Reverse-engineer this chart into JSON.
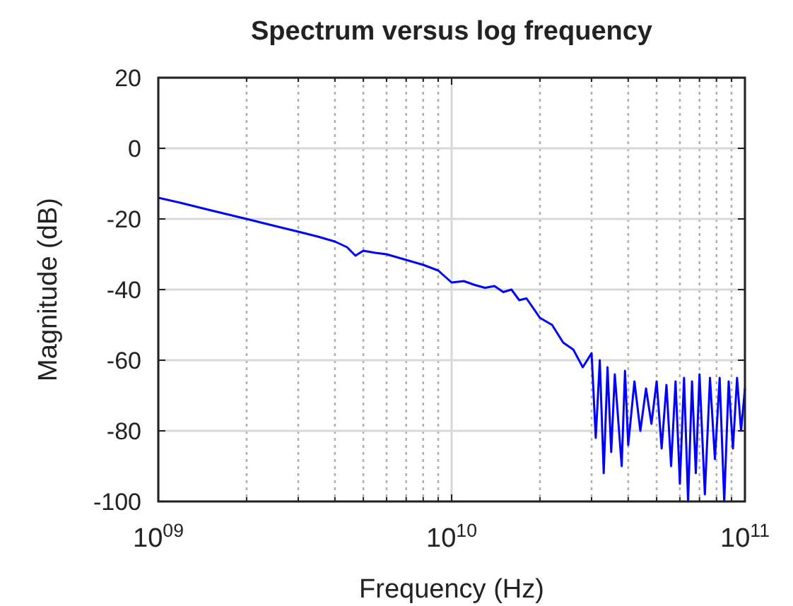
{
  "chart_data": {
    "type": "line",
    "title": "Spectrum versus log frequency",
    "xlabel": "Frequency (Hz)",
    "ylabel": "Magnitude (dB)",
    "log": "x",
    "grid": true,
    "marker": "none",
    "line_style": "solid",
    "xlim": [
      1000000000.0,
      100000000000.0
    ],
    "ylim": [
      -100,
      20
    ],
    "yticks": [
      -100,
      -80,
      -60,
      -40,
      -20,
      0,
      20
    ],
    "xticks": [
      {
        "value": 1000000000.0,
        "label": "10$^{09}$"
      },
      {
        "value": 2000000000.0,
        "label": null
      },
      {
        "value": 3000000000.0,
        "label": null
      },
      {
        "value": 4000000000.0,
        "label": null
      },
      {
        "value": 5000000000.0,
        "label": null
      },
      {
        "value": 6000000000.0,
        "label": null
      },
      {
        "value": 7000000000.0,
        "label": null
      },
      {
        "value": 8000000000.0,
        "label": null
      },
      {
        "value": 9000000000.0,
        "label": null
      },
      {
        "value": 10000000000.0,
        "label": "10$^{10}$"
      },
      {
        "value": 20000000000.0,
        "label": null
      },
      {
        "value": 30000000000.0,
        "label": null
      },
      {
        "value": 40000000000.0,
        "label": null
      },
      {
        "value": 50000000000.0,
        "label": null
      },
      {
        "value": 60000000000.0,
        "label": null
      },
      {
        "value": 70000000000.0,
        "label": null
      },
      {
        "value": 80000000000.0,
        "label": null
      },
      {
        "value": 90000000000.0,
        "label": null
      },
      {
        "value": 100000000000.0,
        "label": "10$^{11}$"
      }
    ],
    "series": [
      {
        "color": "#0000ff",
        "x": [
          1000000000.0,
          1200000000.0,
          1500000000.0,
          2000000000.0,
          2500000000.0,
          3000000000.0,
          3500000000.0,
          4000000000.0,
          4400000000.0,
          4700000000.0,
          5000000000.0,
          5500000000.0,
          6000000000.0,
          7000000000.0,
          8000000000.0,
          9000000000.0,
          10000000000.0,
          11000000000.0,
          12000000000.0,
          13000000000.0,
          14000000000.0,
          15000000000.0,
          16000000000.0,
          17000000000.0,
          18000000000.0,
          20000000000.0,
          22000000000.0,
          24000000000.0,
          26000000000.0,
          28000000000.0,
          30000000000.0,
          31000000000.0,
          32000000000.0,
          33000000000.0,
          34000000000.0,
          35000000000.0,
          36000000000.0,
          38000000000.0,
          39000000000.0,
          40000000000.0,
          42000000000.0,
          44000000000.0,
          46000000000.0,
          48000000000.0,
          50000000000.0,
          52000000000.0,
          54000000000.0,
          56000000000.0,
          58000000000.0,
          60000000000.0,
          62000000000.0,
          64000000000.0,
          66000000000.0,
          68000000000.0,
          70000000000.0,
          73000000000.0,
          76000000000.0,
          79000000000.0,
          82000000000.0,
          85000000000.0,
          88000000000.0,
          91000000000.0,
          94000000000.0,
          97000000000.0,
          100000000000.0
        ],
        "values": [
          -14,
          -15.5,
          -17.5,
          -20,
          -22,
          -23.6,
          -25,
          -26.4,
          -28,
          -30.4,
          -29,
          -29.6,
          -30,
          -31.6,
          -33,
          -34.6,
          -38,
          -37.6,
          -38.7,
          -39.5,
          -39,
          -40.7,
          -40,
          -43,
          -42.5,
          -48,
          -50,
          -55,
          -57,
          -62,
          -58,
          -82,
          -60,
          -92,
          -62,
          -86,
          -64,
          -90,
          -63,
          -84,
          -66,
          -80,
          -68,
          -78,
          -66,
          -85,
          -67,
          -90,
          -66,
          -95,
          -65,
          -100,
          -66,
          -92,
          -64,
          -98,
          -65,
          -88,
          -65,
          -100,
          -66,
          -85,
          -65,
          -80,
          -68
        ]
      }
    ]
  }
}
